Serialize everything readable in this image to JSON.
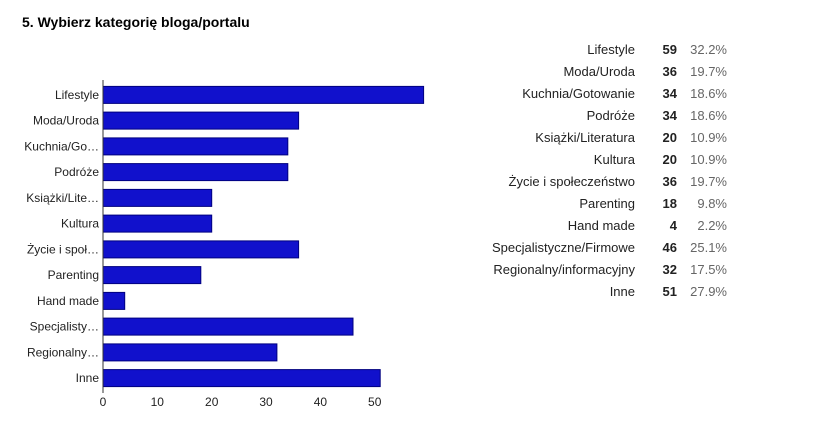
{
  "question": {
    "title": "5. Wybierz kategorię bloga/portalu"
  },
  "colors": {
    "bar_fill": "#1111cc",
    "bar_stroke": "#000080",
    "axis": "#333333",
    "text": "#222222",
    "pct_text": "#666666"
  },
  "chart_data": {
    "type": "bar",
    "orientation": "horizontal",
    "title": "",
    "xlabel": "",
    "ylabel": "",
    "categories": [
      "Lifestyle",
      "Moda/Uroda",
      "Kuchnia/Go…",
      "Podróże",
      "Książki/Lite…",
      "Kultura",
      "Życie i społ…",
      "Parenting",
      "Hand made",
      "Specjalisty…",
      "Regionalny…",
      "Inne"
    ],
    "values": [
      59,
      36,
      34,
      34,
      20,
      20,
      36,
      18,
      4,
      46,
      32,
      51
    ],
    "xlim": [
      0,
      58.7
    ],
    "xticks": [
      "0",
      "10",
      "20",
      "30",
      "40",
      "50"
    ],
    "grid": false,
    "legend": "none"
  },
  "summary": {
    "rows": [
      {
        "label": "Lifestyle",
        "count": "59",
        "percent": "32.2%"
      },
      {
        "label": "Moda/Uroda",
        "count": "36",
        "percent": "19.7%"
      },
      {
        "label": "Kuchnia/Gotowanie",
        "count": "34",
        "percent": "18.6%"
      },
      {
        "label": "Podróże",
        "count": "34",
        "percent": "18.6%"
      },
      {
        "label": "Książki/Literatura",
        "count": "20",
        "percent": "10.9%"
      },
      {
        "label": "Kultura",
        "count": "20",
        "percent": "10.9%"
      },
      {
        "label": "Życie i społeczeństwo",
        "count": "36",
        "percent": "19.7%"
      },
      {
        "label": "Parenting",
        "count": "18",
        "percent": "9.8%"
      },
      {
        "label": "Hand made",
        "count": "4",
        "percent": "2.2%"
      },
      {
        "label": "Specjalistyczne/Firmowe",
        "count": "46",
        "percent": "25.1%"
      },
      {
        "label": "Regionalny/informacyjny",
        "count": "32",
        "percent": "17.5%"
      },
      {
        "label": "Inne",
        "count": "51",
        "percent": "27.9%"
      }
    ]
  }
}
